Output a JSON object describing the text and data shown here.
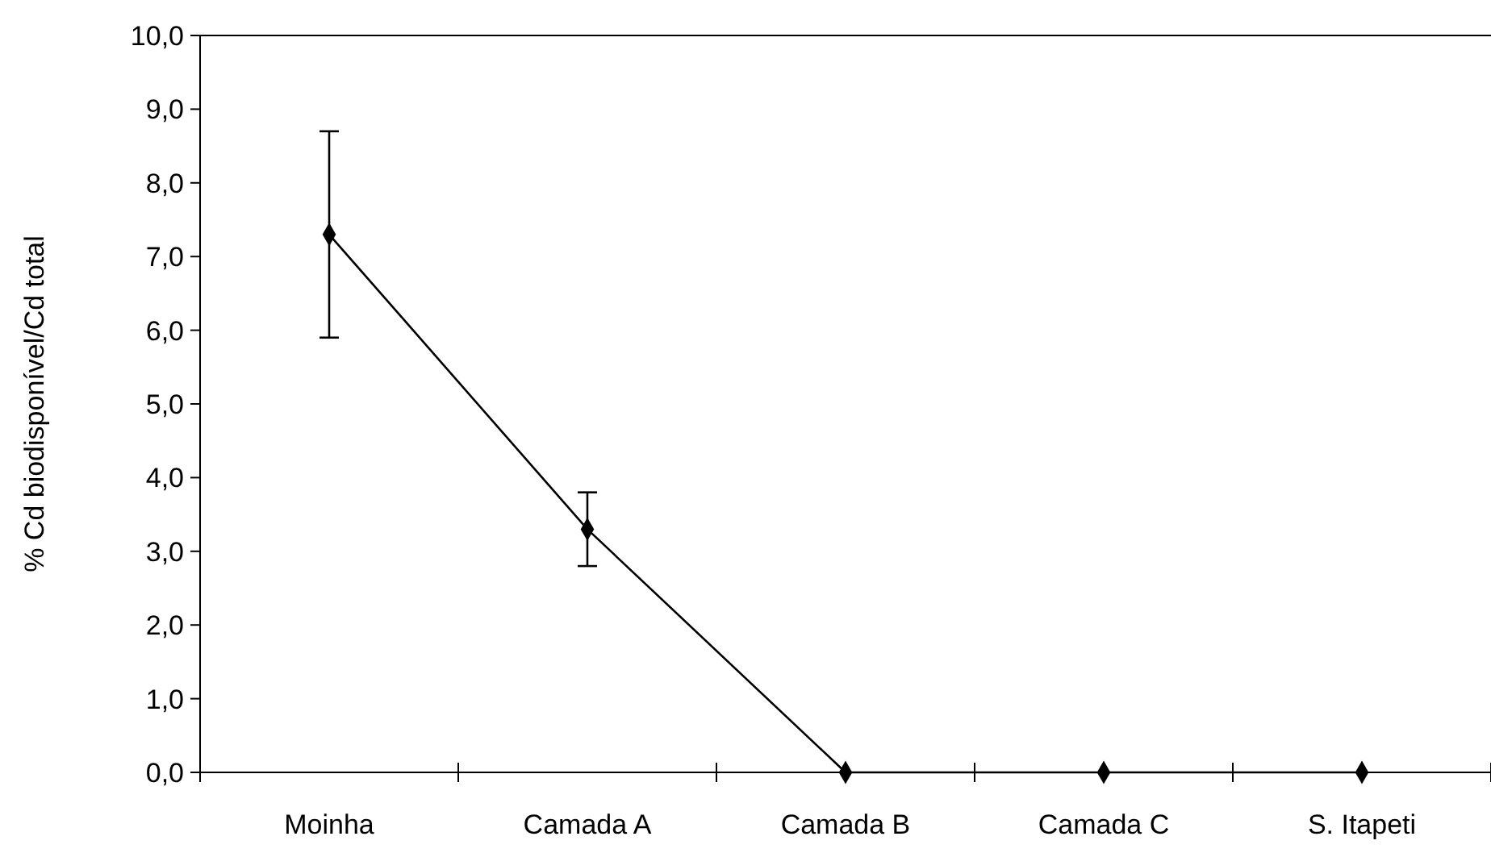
{
  "chart_data": {
    "type": "line",
    "ylabel": "% Cd biodisponível/Cd total",
    "categories": [
      "Moinha",
      "Camada A",
      "Camada B",
      "Camada C",
      "S. Itapeti"
    ],
    "series": [
      {
        "color": "#000000",
        "values": [
          7.3,
          3.3,
          0,
          0,
          0
        ],
        "errors": [
          1.4,
          0.5,
          null,
          null,
          null
        ]
      }
    ],
    "ylim": [
      0,
      10
    ],
    "yticks": [
      {
        "value": 0,
        "label": "0,0"
      },
      {
        "value": 1,
        "label": "1,0"
      },
      {
        "value": 2,
        "label": "2,0"
      },
      {
        "value": 3,
        "label": "3,0"
      },
      {
        "value": 4,
        "label": "4,0"
      },
      {
        "value": 5,
        "label": "5,0"
      },
      {
        "value": 6,
        "label": "6,0"
      },
      {
        "value": 7,
        "label": "7,0"
      },
      {
        "value": 8,
        "label": "8,0"
      },
      {
        "value": 9,
        "label": "9,0"
      },
      {
        "value": 10,
        "label": "10,0"
      }
    ],
    "marker": "diamond",
    "line_style": "solid",
    "grid": false
  }
}
